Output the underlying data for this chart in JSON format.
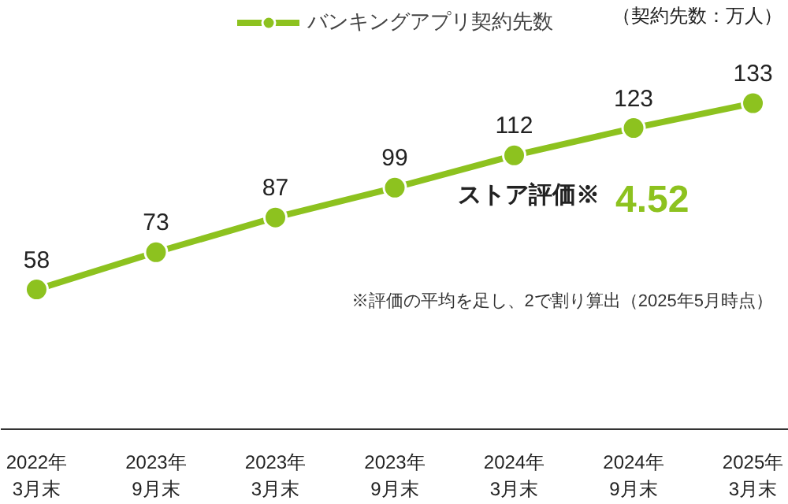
{
  "chart_data": {
    "type": "line",
    "categories": [
      "2022年\n3月末",
      "2023年\n9月末",
      "2023年\n3月末",
      "2023年\n9月末",
      "2024年\n3月末",
      "2024年\n9月末",
      "2025年\n3月末"
    ],
    "series": [
      {
        "name": "バンキングアプリ契約先数",
        "color": "#8dc21f",
        "values": [
          58,
          73,
          87,
          99,
          112,
          123,
          133
        ]
      }
    ],
    "data_labels": true,
    "marker": "circle",
    "legend": "top right",
    "grid": false,
    "subtitle": "（契約先数：万人）",
    "annotations": [
      "ストア評価※",
      "4.52",
      "※評価の平均を足し、2で割り算出（2025年5月時点）"
    ]
  }
}
